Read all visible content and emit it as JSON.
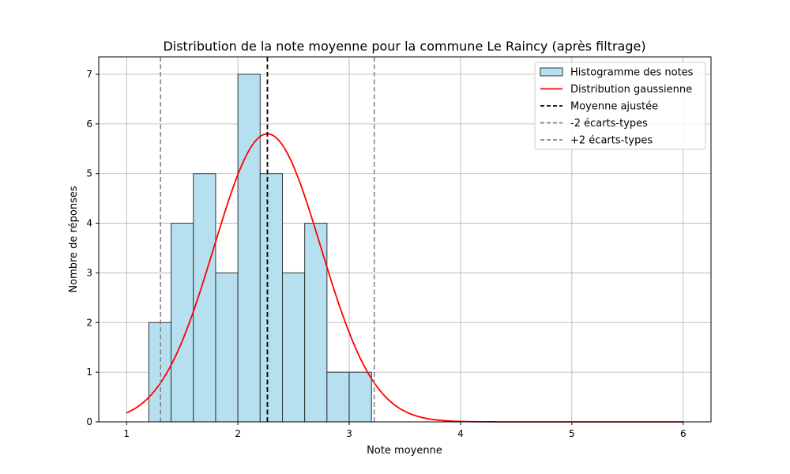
{
  "chart_data": {
    "type": "bar",
    "title": "Distribution de la note moyenne pour la commune Le Raincy (après filtrage)",
    "xlabel": "Note moyenne",
    "ylabel": "Nombre de réponses",
    "xlim": [
      0.75,
      6.25
    ],
    "ylim": [
      0,
      7.35
    ],
    "x_ticks": [
      1,
      2,
      3,
      4,
      5,
      6
    ],
    "y_ticks": [
      0,
      1,
      2,
      3,
      4,
      5,
      6,
      7
    ],
    "grid": true,
    "legend_position": "top-right",
    "histogram": {
      "name": "Histogramme des notes",
      "bin_edges": [
        1.2,
        1.4,
        1.6,
        1.8,
        2.0,
        2.2,
        2.4,
        2.6,
        2.8,
        3.0,
        3.2
      ],
      "counts": [
        2,
        4,
        5,
        3,
        7,
        5,
        3,
        4,
        1,
        1
      ],
      "color": "#b6dfef",
      "edge_color": "#333333"
    },
    "gaussian": {
      "name": "Distribution gaussienne",
      "mean": 2.265,
      "std": 0.48,
      "peak": 5.8,
      "x_range": [
        1,
        6
      ],
      "color": "#ff0000"
    },
    "vlines": [
      {
        "name": "Moyenne ajustée",
        "x": 2.265,
        "color": "#000000"
      },
      {
        "name": "-2 écarts-types",
        "x": 1.305,
        "color": "#808080"
      },
      {
        "name": "+2 écarts-types",
        "x": 3.225,
        "color": "#808080"
      }
    ]
  }
}
